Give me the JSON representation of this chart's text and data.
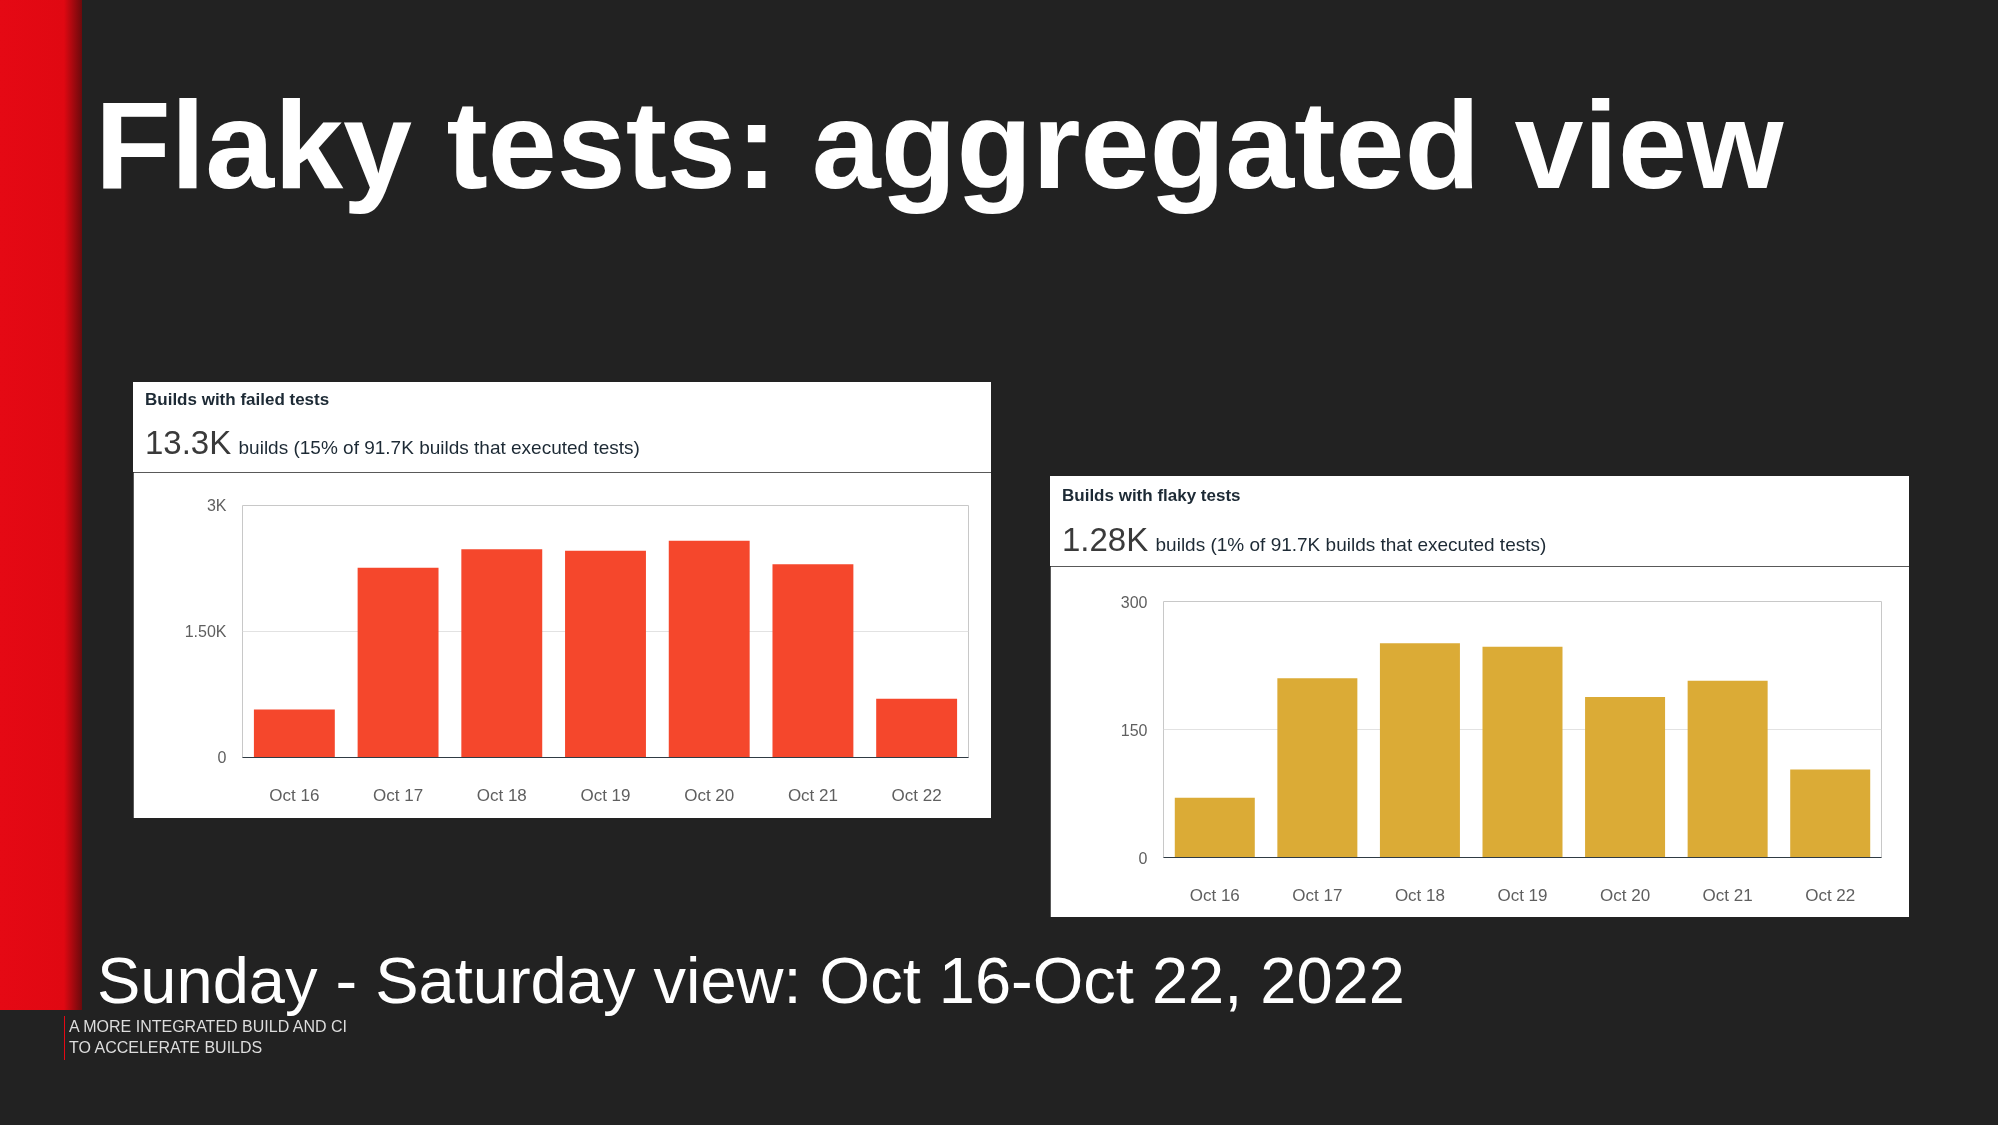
{
  "chart_data": [
    {
      "type": "bar",
      "title": "Builds with failed tests",
      "subtitle": "13.3K builds (15% of 91.7K builds that executed tests)",
      "categories": [
        "Oct 16",
        "Oct 17",
        "Oct 18",
        "Oct 19",
        "Oct 20",
        "Oct 21",
        "Oct 22"
      ],
      "values": [
        570,
        2260,
        2480,
        2460,
        2580,
        2300,
        700
      ],
      "color": "#f5472c",
      "ylim": [
        0,
        3000
      ],
      "yticks": [
        0,
        {
          "value": 1500,
          "label": "1.50K"
        },
        {
          "value": 3000,
          "label": "3K"
        }
      ],
      "grid": "y",
      "annotations": [
        "Flaky tests: aggregated view",
        "Sunday - Saturday view: Oct 16-Oct 22, 2022",
        "A MORE INTEGRATED BUILD AND CI TO ACCELERATE BUILDS"
      ]
    },
    {
      "type": "bar",
      "title": "Builds with flaky tests",
      "subtitle": "1.28K builds (1% of 91.7K builds that executed tests)",
      "categories": [
        "Oct 16",
        "Oct 17",
        "Oct 18",
        "Oct 19",
        "Oct 20",
        "Oct 21",
        "Oct 22"
      ],
      "values": [
        70,
        210,
        251,
        247,
        188,
        207,
        103
      ],
      "color": "#dbab36",
      "ylim": [
        0,
        300
      ],
      "yticks": [
        0,
        150,
        300
      ],
      "grid": "y"
    }
  ]
}
